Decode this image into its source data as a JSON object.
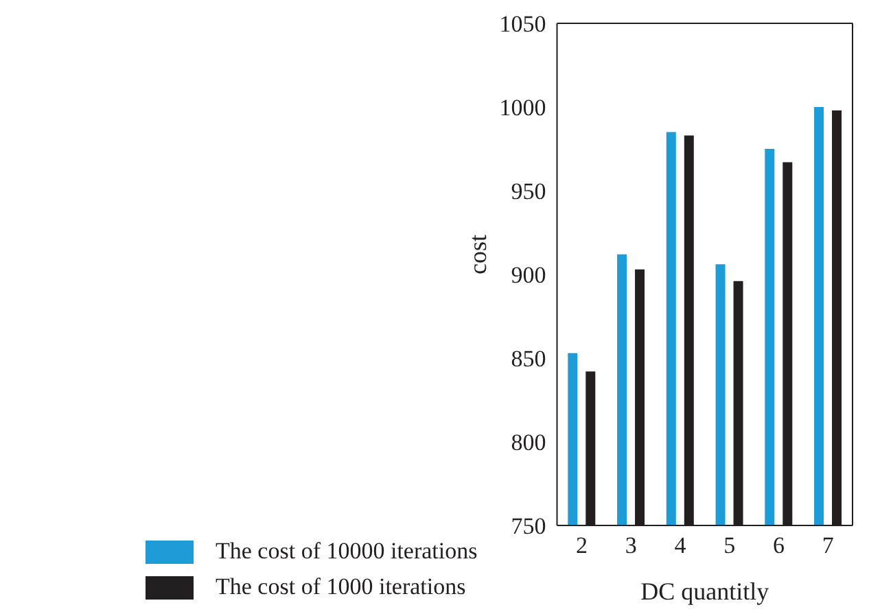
{
  "chart_data": {
    "type": "bar",
    "xlabel": "DC quantitly",
    "ylabel": "cost",
    "categories": [
      "2",
      "3",
      "4",
      "5",
      "6",
      "7"
    ],
    "series": [
      {
        "name": "The cost of 10000 iterations",
        "color": "#1e9cd7",
        "values": [
          853,
          912,
          985,
          906,
          975,
          1000
        ]
      },
      {
        "name": "The cost of 1000 iterations",
        "color": "#231f20",
        "values": [
          842,
          903,
          983,
          896,
          967,
          998
        ]
      }
    ],
    "ylim": [
      750,
      1050
    ],
    "yticks": [
      750,
      800,
      850,
      900,
      950,
      1000,
      1050
    ],
    "grid": false,
    "legend": "bottom left"
  }
}
